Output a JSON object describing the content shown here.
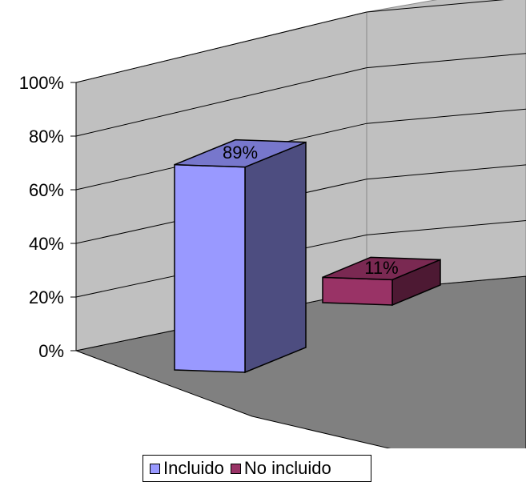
{
  "chart_data": {
    "type": "bar",
    "categories": [
      "Incluido",
      "No incluido"
    ],
    "values": [
      89,
      11
    ],
    "data_labels": [
      "89%",
      "11%"
    ],
    "yticks": [
      "0%",
      "20%",
      "40%",
      "60%",
      "80%",
      "100%"
    ],
    "ylim": [
      0,
      100
    ],
    "grid": true,
    "legend_position": "bottom",
    "colors": {
      "Incluido": {
        "front": "#9999ff",
        "side": "#4d4d80",
        "top": "#7777cc"
      },
      "No incluido": {
        "front": "#993366",
        "side": "#4d1933",
        "top": "#7a2952"
      },
      "wall": "#c0c0c0",
      "floor": "#808080"
    }
  },
  "legend": {
    "items": [
      {
        "label": "Incluido",
        "color": "#9999ff"
      },
      {
        "label": "No incluido",
        "color": "#993366"
      }
    ]
  }
}
